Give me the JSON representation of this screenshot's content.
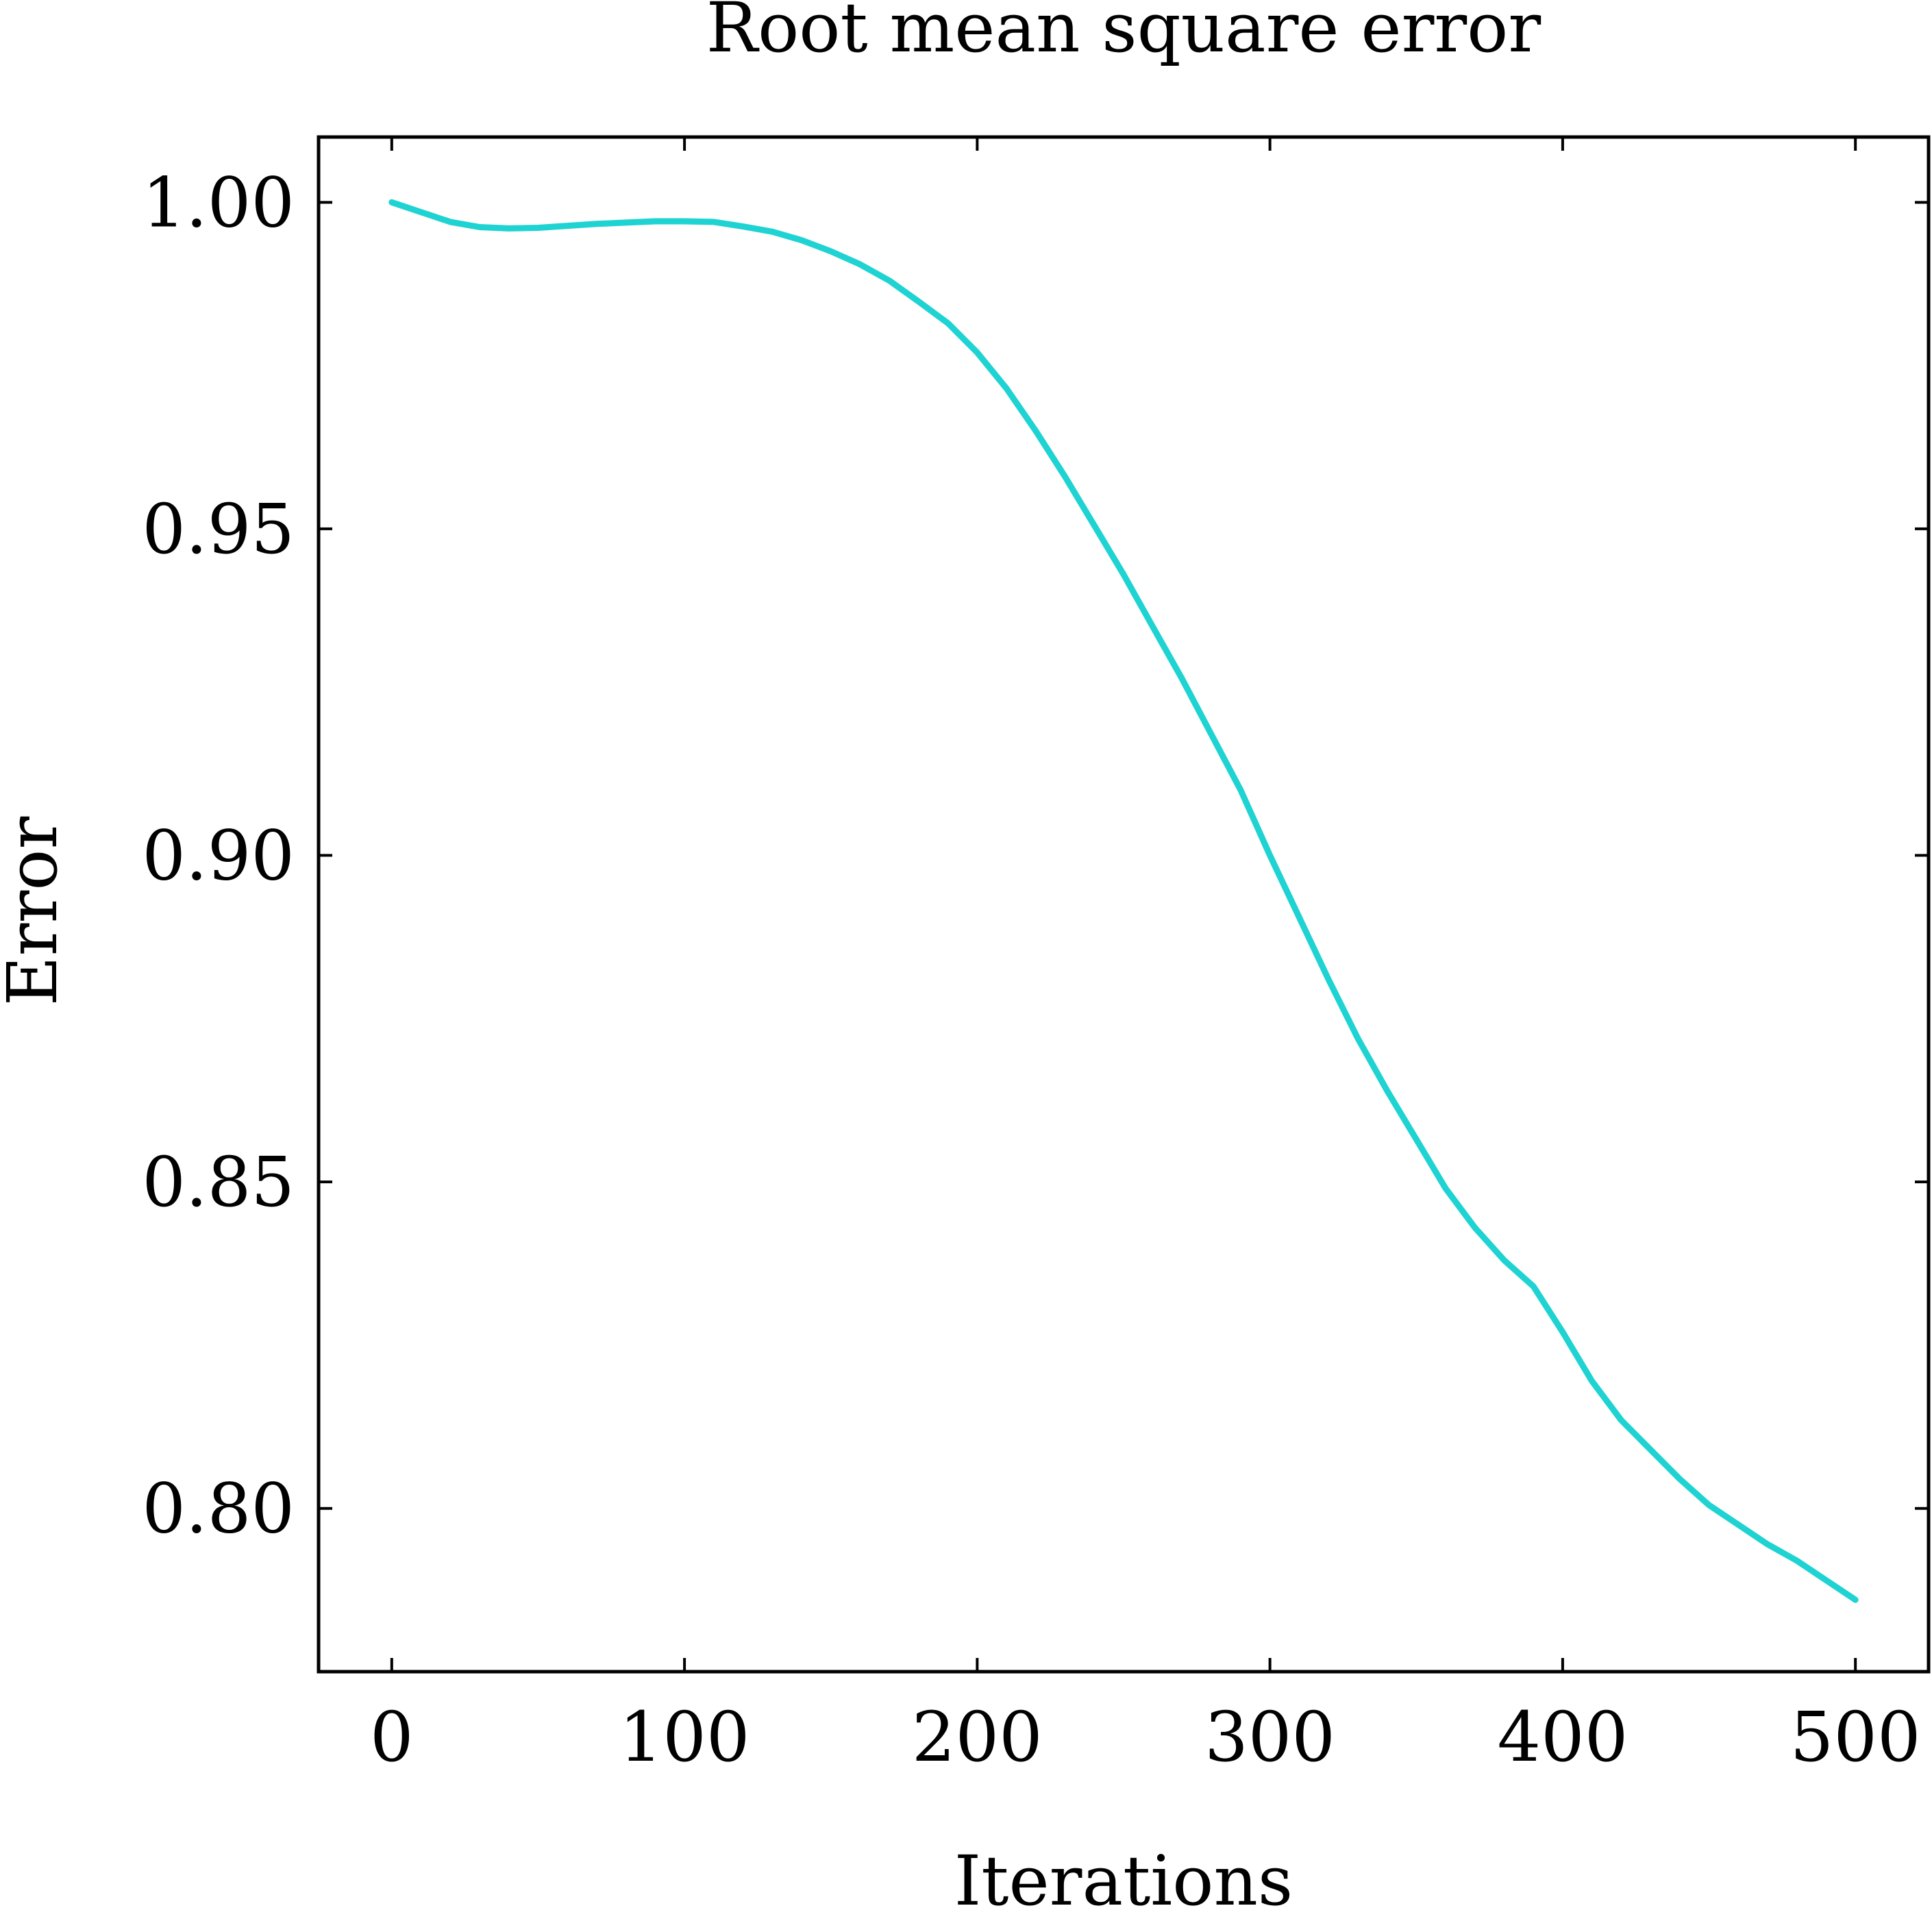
{
  "chart_data": {
    "type": "line",
    "title": "Root mean square error",
    "xlabel": "Iterations",
    "ylabel": "Error",
    "xlim": [
      -25,
      525
    ],
    "ylim": [
      0.775,
      1.01
    ],
    "xticks": [
      0,
      100,
      200,
      300,
      400,
      500
    ],
    "xtick_labels": [
      "0",
      "100",
      "200",
      "300",
      "400",
      "500"
    ],
    "yticks": [
      0.8,
      0.85,
      0.9,
      0.95,
      1.0
    ],
    "ytick_labels": [
      "0.80",
      "0.85",
      "0.90",
      "0.95",
      "1.00"
    ],
    "grid": false,
    "series": [
      {
        "color": "#1fd3d3",
        "x": [
          0,
          10,
          20,
          30,
          40,
          50,
          60,
          70,
          80,
          90,
          100,
          110,
          120,
          130,
          140,
          150,
          160,
          170,
          180,
          190,
          200,
          210,
          220,
          230,
          240,
          250,
          260,
          270,
          280,
          290,
          300,
          310,
          320,
          330,
          340,
          350,
          360,
          370,
          380,
          390,
          400,
          410,
          420,
          430,
          440,
          450,
          460,
          470,
          480,
          490,
          500
        ],
        "y": [
          1.0,
          0.9985,
          0.997,
          0.9962,
          0.996,
          0.9961,
          0.9964,
          0.9967,
          0.9969,
          0.9971,
          0.9971,
          0.997,
          0.9963,
          0.9955,
          0.9942,
          0.9925,
          0.9905,
          0.988,
          0.9848,
          0.9815,
          0.977,
          0.9715,
          0.965,
          0.958,
          0.9505,
          0.943,
          0.935,
          0.927,
          0.9185,
          0.91,
          0.9,
          0.8905,
          0.881,
          0.872,
          0.864,
          0.8565,
          0.849,
          0.843,
          0.838,
          0.834,
          0.827,
          0.8195,
          0.8135,
          0.809,
          0.8045,
          0.8005,
          0.7975,
          0.7945,
          0.792,
          0.789,
          0.786
        ]
      }
    ]
  }
}
